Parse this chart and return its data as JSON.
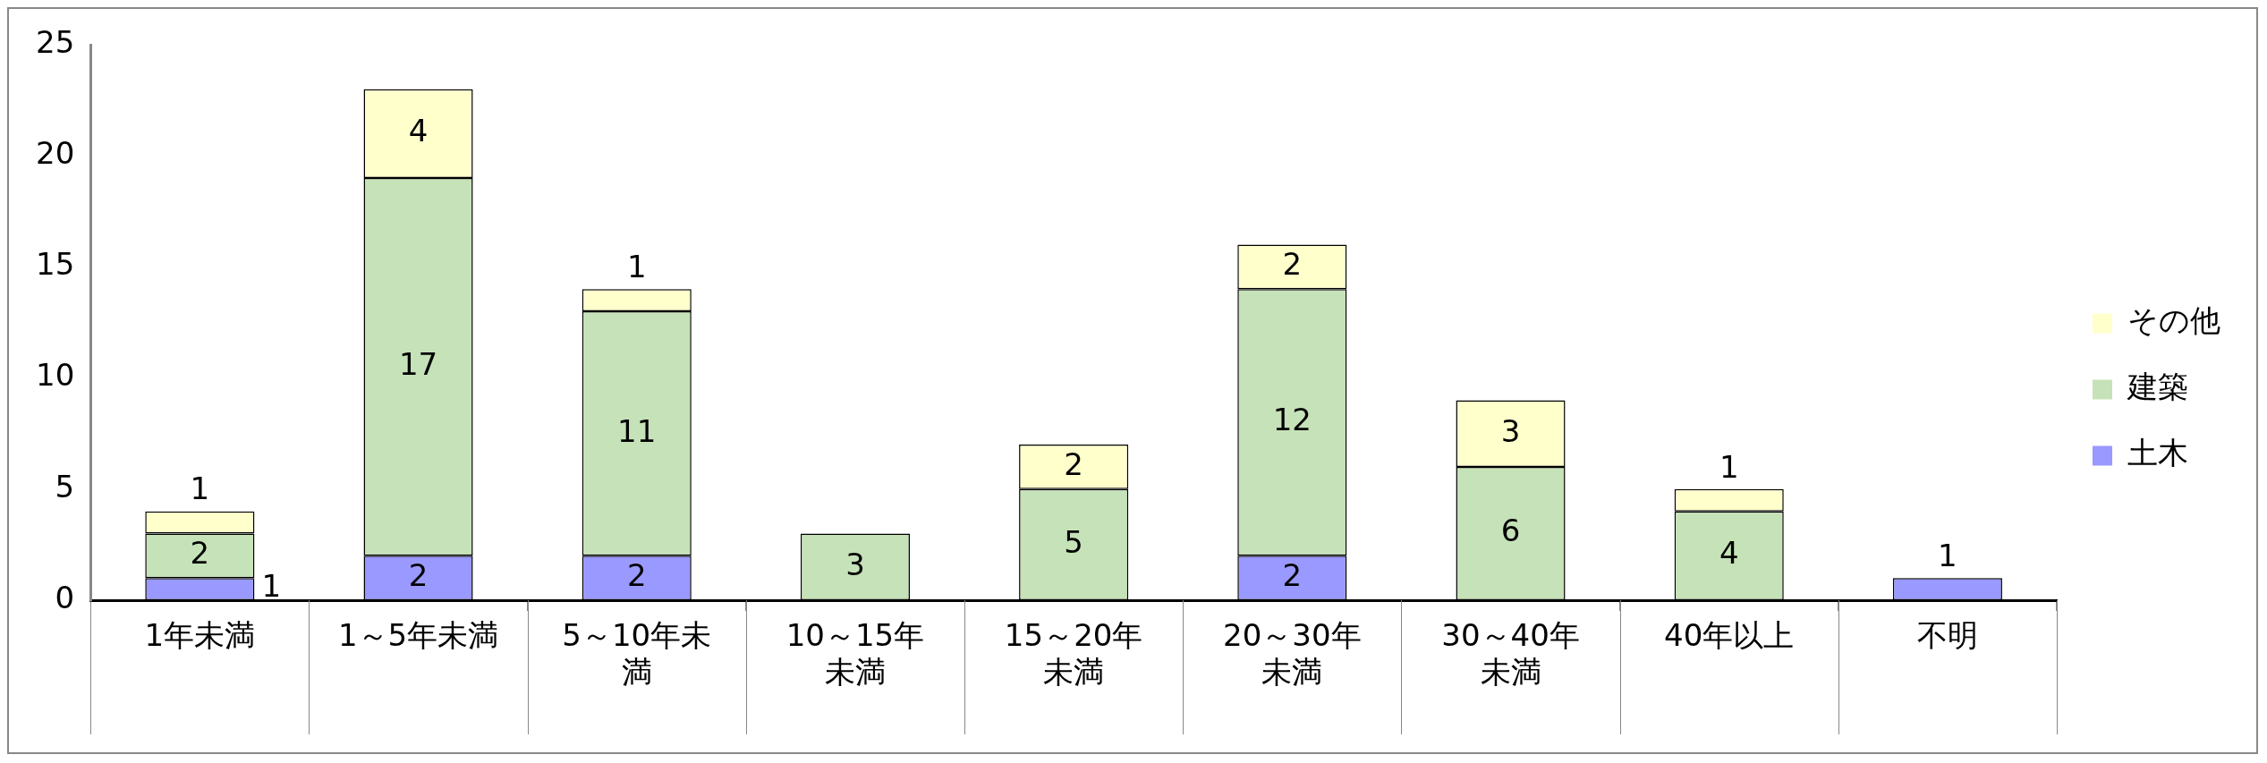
{
  "chart_data": {
    "type": "bar",
    "stacked": true,
    "categories": [
      "1年未満",
      "1～5年未満",
      "5～10年未満",
      "10～15年未満",
      "15～20年未満",
      "20～30年未満",
      "30～40年未満",
      "40年以上",
      "不明"
    ],
    "series": [
      {
        "name": "土木",
        "color": "#9999ff",
        "values": [
          1,
          2,
          2,
          null,
          null,
          2,
          null,
          null,
          1
        ]
      },
      {
        "name": "建築",
        "color": "#c6e2b8",
        "values": [
          2,
          17,
          11,
          3,
          5,
          12,
          6,
          4,
          null
        ]
      },
      {
        "name": "その他",
        "color": "#ffffcc",
        "values": [
          1,
          4,
          1,
          null,
          2,
          2,
          3,
          1,
          null
        ]
      }
    ],
    "ylim": [
      0,
      25
    ],
    "yticks": [
      0,
      5,
      10,
      15,
      20,
      25
    ],
    "grid": false,
    "legend": "right",
    "data_labels": true
  }
}
